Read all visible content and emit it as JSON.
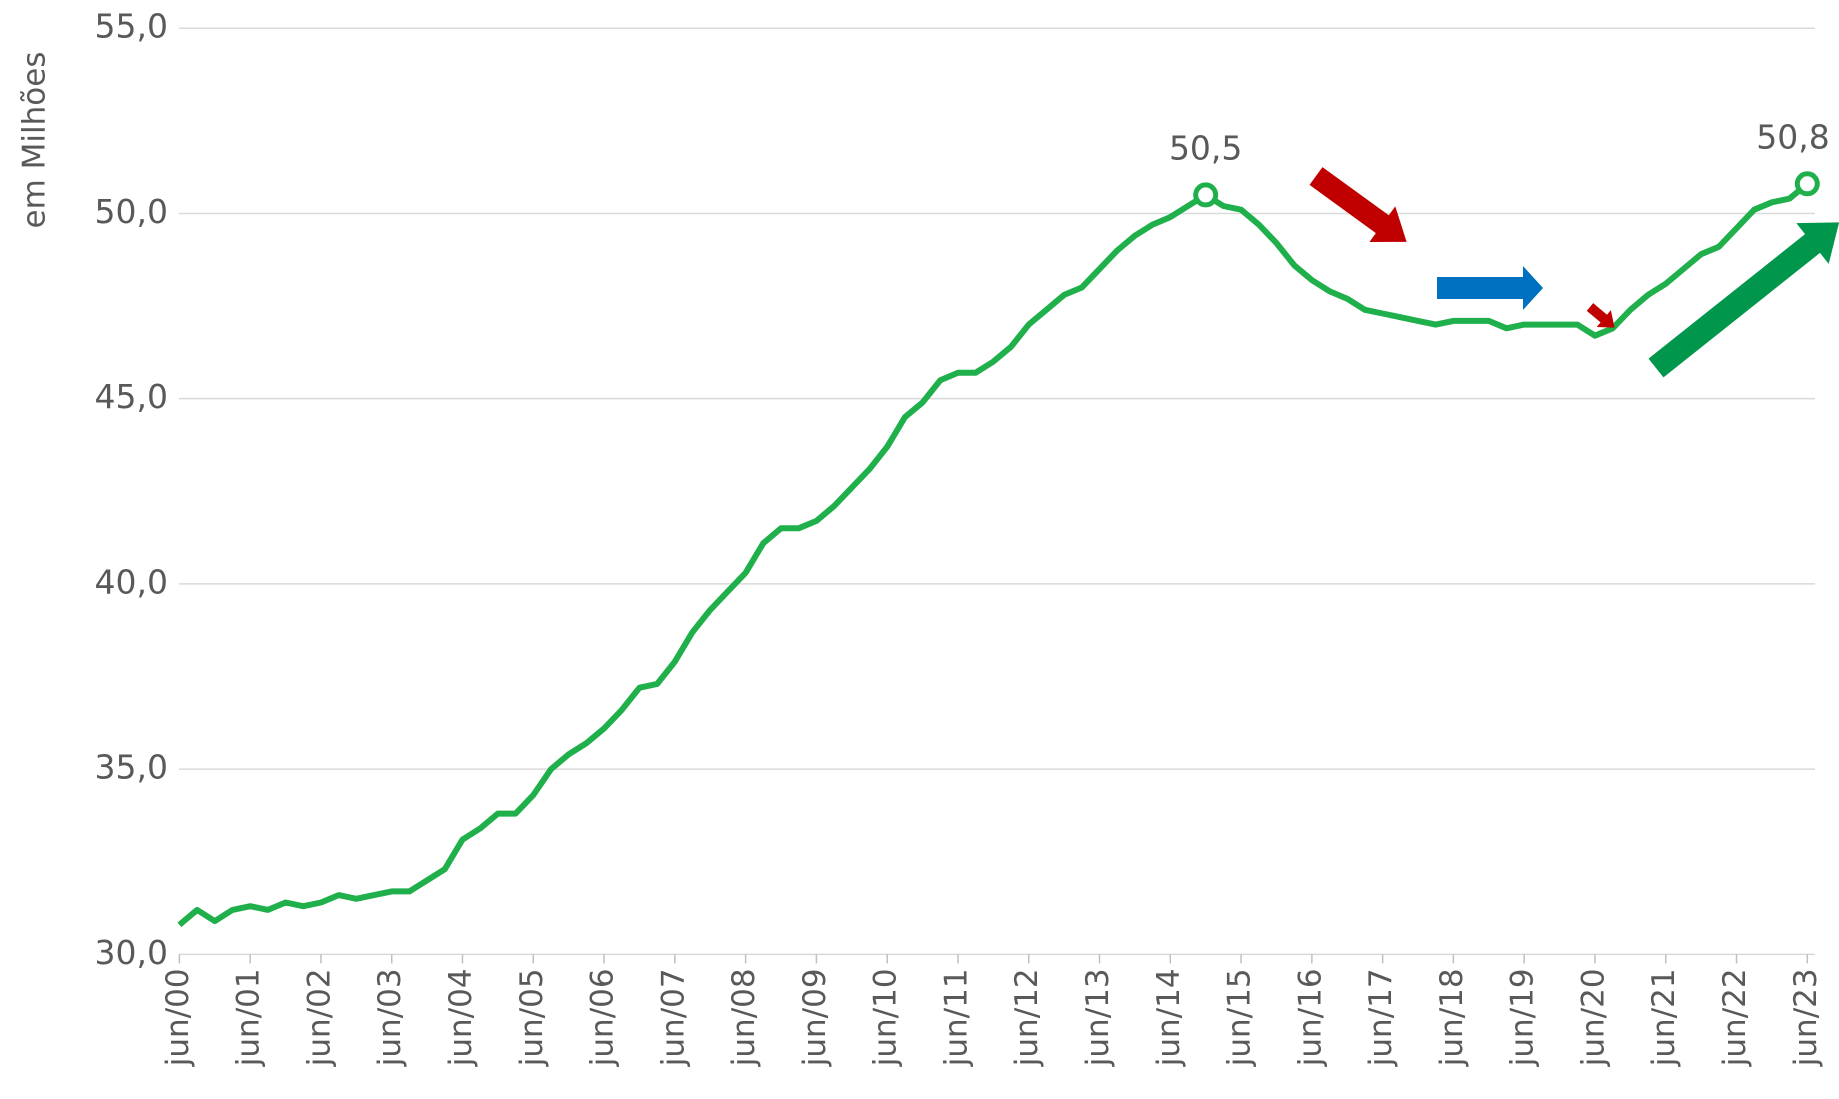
{
  "chart_data": {
    "type": "line",
    "y_label": "em Milhões",
    "color": "#1fb04c",
    "categories": [
      "jun/00",
      null,
      null,
      null,
      "jun/01",
      null,
      null,
      null,
      "jun/02",
      null,
      null,
      null,
      "jun/03",
      null,
      null,
      null,
      "jun/04",
      null,
      null,
      null,
      "jun/05",
      null,
      null,
      null,
      "jun/06",
      null,
      null,
      null,
      "jun/07",
      null,
      null,
      null,
      "jun/08",
      null,
      null,
      null,
      "jun/09",
      null,
      null,
      null,
      "jun/10",
      null,
      null,
      null,
      "jun/11",
      null,
      null,
      null,
      "jun/12",
      null,
      null,
      null,
      "jun/13",
      null,
      null,
      null,
      "jun/14",
      null,
      null,
      null,
      "jun/15",
      null,
      null,
      null,
      "jun/16",
      null,
      null,
      null,
      "jun/17",
      null,
      null,
      null,
      "jun/18",
      null,
      null,
      null,
      "jun/19",
      null,
      null,
      null,
      "jun/20",
      null,
      null,
      null,
      "jun/21",
      null,
      null,
      null,
      "jun/22",
      null,
      null,
      null,
      "jun/23"
    ],
    "values": [
      30.8,
      31.2,
      30.9,
      31.2,
      31.3,
      31.2,
      31.4,
      31.3,
      31.4,
      31.6,
      31.5,
      31.6,
      31.7,
      31.7,
      32.0,
      32.3,
      33.1,
      33.4,
      33.8,
      33.8,
      34.3,
      35.0,
      35.4,
      35.7,
      36.1,
      36.6,
      37.2,
      37.3,
      37.9,
      38.7,
      39.3,
      39.8,
      40.3,
      41.1,
      41.5,
      41.5,
      41.7,
      42.1,
      42.6,
      43.1,
      43.7,
      44.5,
      44.9,
      45.5,
      45.7,
      45.7,
      46.0,
      46.4,
      47.0,
      47.4,
      47.8,
      48.0,
      48.5,
      49.0,
      49.4,
      49.7,
      49.9,
      50.2,
      50.5,
      50.2,
      50.1,
      49.7,
      49.2,
      48.6,
      48.2,
      47.9,
      47.7,
      47.4,
      47.3,
      47.2,
      47.1,
      47.0,
      47.1,
      47.1,
      47.1,
      46.9,
      47.0,
      47.0,
      47.0,
      47.0,
      46.7,
      46.9,
      47.4,
      47.8,
      48.1,
      48.5,
      48.9,
      49.1,
      49.6,
      50.1,
      50.3,
      50.4,
      50.8
    ],
    "value_labels": [
      null,
      null,
      null,
      null,
      null,
      null,
      null,
      null,
      null,
      null,
      null,
      null,
      null,
      null,
      null,
      null,
      null,
      null,
      null,
      null,
      null,
      null,
      null,
      null,
      null,
      null,
      null,
      null,
      null,
      null,
      null,
      null,
      null,
      null,
      null,
      null,
      null,
      null,
      null,
      null,
      null,
      null,
      null,
      null,
      null,
      null,
      null,
      null,
      null,
      null,
      null,
      null,
      null,
      null,
      null,
      null,
      null,
      null,
      "50,5",
      null,
      null,
      null,
      null,
      null,
      null,
      null,
      null,
      null,
      null,
      null,
      null,
      null,
      null,
      null,
      null,
      null,
      null,
      null,
      null,
      null,
      null,
      null,
      null,
      null,
      null,
      null,
      null,
      null,
      null,
      null,
      null,
      null,
      "50,8"
    ],
    "ylim": [
      30,
      55
    ],
    "yticks": [
      {
        "value": 30,
        "label": "30,0"
      },
      {
        "value": 35,
        "label": "35,0"
      },
      {
        "value": 40,
        "label": "40,0"
      },
      {
        "value": 45,
        "label": "45,0"
      },
      {
        "value": 50,
        "label": "50,0"
      },
      {
        "value": 55,
        "label": "55,0"
      }
    ],
    "grid": true
  }
}
